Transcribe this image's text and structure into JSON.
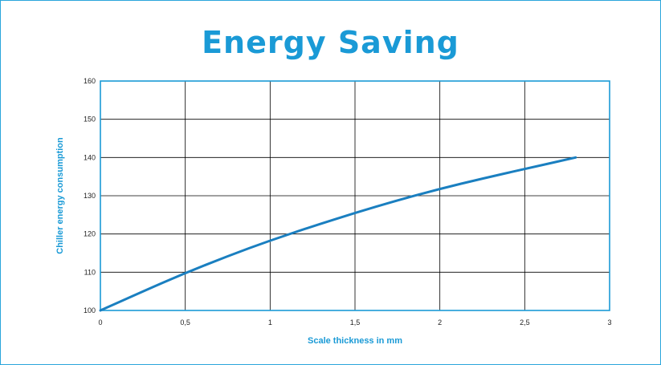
{
  "colors": {
    "accent": "#1a9ad6",
    "frame": "#2aa5db",
    "grid": "#000000",
    "line": "#1a7fc0"
  },
  "chart_data": {
    "type": "line",
    "title": "Energy Saving",
    "xlabel": "Scale thickness in mm",
    "ylabel": "Chiller energy consumption",
    "xlim": [
      0,
      3
    ],
    "ylim": [
      100,
      160
    ],
    "x_ticks": [
      "0",
      "0,5",
      "1",
      "1,5",
      "2",
      "2,5",
      "3"
    ],
    "y_ticks": [
      "100",
      "110",
      "120",
      "130",
      "140",
      "150",
      "160"
    ],
    "grid": true,
    "series": [
      {
        "x": [
          0,
          0.25,
          0.5,
          0.75,
          1,
          1.25,
          1.5,
          1.75,
          2,
          2.25,
          2.5,
          2.8
        ],
        "values": [
          100,
          105,
          109.8,
          114.2,
          118.3,
          122,
          125.5,
          128.8,
          131.8,
          134.5,
          137,
          140
        ]
      }
    ]
  }
}
